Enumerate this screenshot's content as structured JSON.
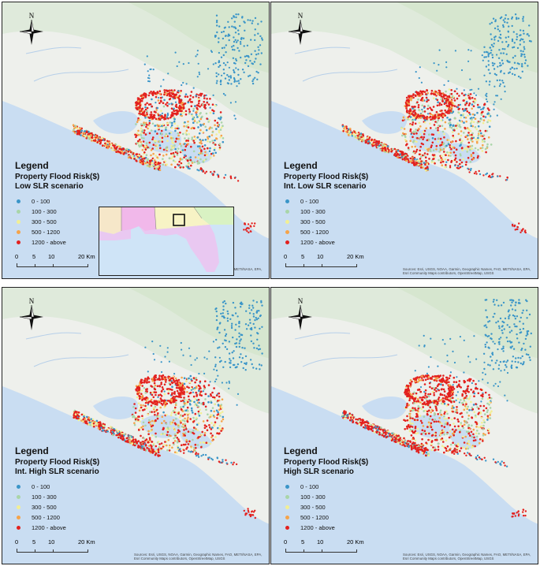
{
  "north_label": "N",
  "legend": {
    "title": "Legend",
    "subtitle": "Property Flood Risk($)",
    "classes": [
      {
        "label": "0 - 100",
        "color": "#3a95c8"
      },
      {
        "label": "100 - 300",
        "color": "#a9d5a8"
      },
      {
        "label": "300 - 500",
        "color": "#f2ef94"
      },
      {
        "label": "500 - 1200",
        "color": "#f5a44a"
      },
      {
        "label": "1200 - above",
        "color": "#e3211e"
      }
    ]
  },
  "scale_bar": {
    "labels": [
      "0",
      "5",
      "10",
      "20 Km"
    ]
  },
  "credits": "Sources: Esri, USGS, NOAA, Garmin, Geographic Names, FAO, METI/NASA, EPA, Esri Community Maps contributors, OpenStreetMap, USGS",
  "panels": [
    {
      "scenario": "Low SLR scenario",
      "has_inset": true
    },
    {
      "scenario": "Int. Low SLR scenario",
      "has_inset": false
    },
    {
      "scenario": "Int. High SLR scenario",
      "has_inset": false
    },
    {
      "scenario": "High SLR scenario",
      "has_inset": false
    }
  ],
  "colors": {
    "land": "#eef0ec",
    "forest": "#d6e6cf",
    "water": "#c9ddf2",
    "inset_florida": "#e9c8f1",
    "inset_alabama": "#f1b8ea",
    "inset_georgia": "#f7f3c5"
  }
}
